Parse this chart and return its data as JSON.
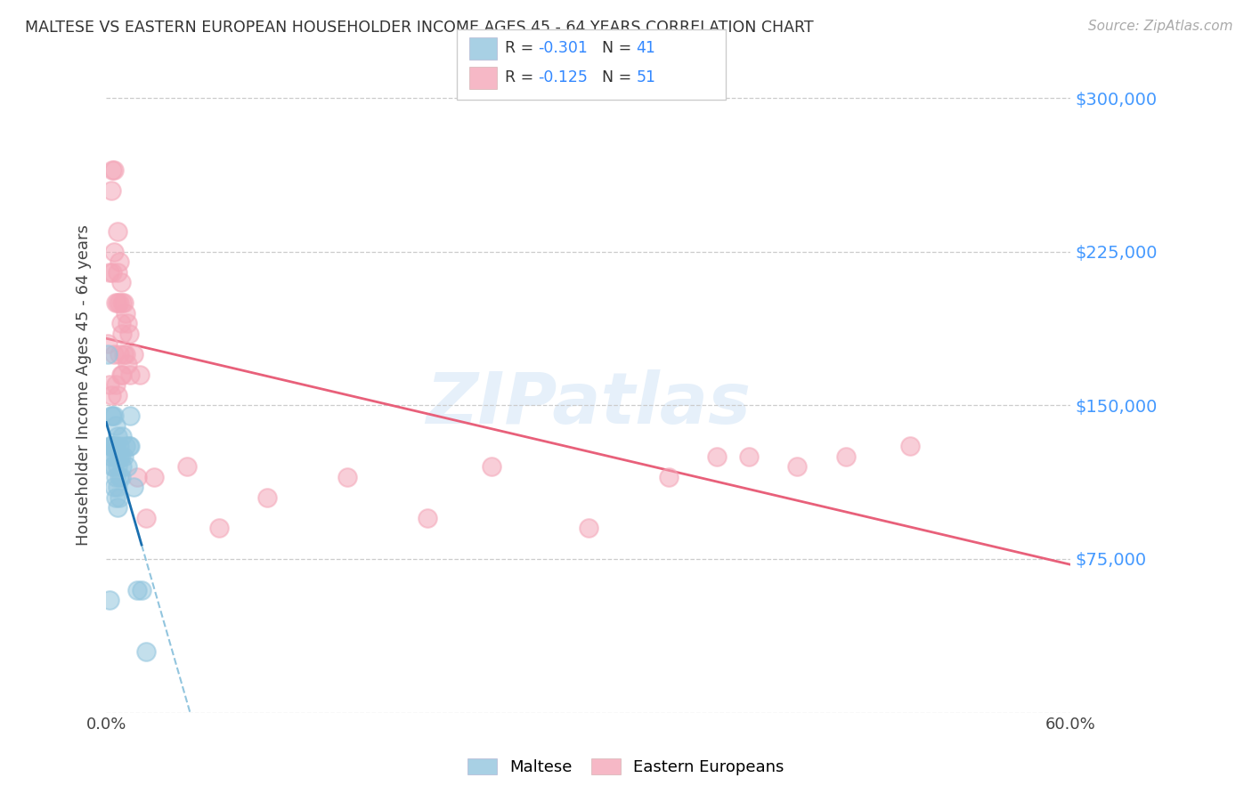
{
  "title": "MALTESE VS EASTERN EUROPEAN HOUSEHOLDER INCOME AGES 45 - 64 YEARS CORRELATION CHART",
  "source": "Source: ZipAtlas.com",
  "ylabel": "Householder Income Ages 45 - 64 years",
  "xlim": [
    0.0,
    0.6
  ],
  "ylim": [
    0,
    320000
  ],
  "xticks": [
    0.0,
    0.1,
    0.2,
    0.3,
    0.4,
    0.5,
    0.6
  ],
  "xticklabels": [
    "0.0%",
    "",
    "",
    "",
    "",
    "",
    "60.0%"
  ],
  "yticks": [
    0,
    75000,
    150000,
    225000,
    300000
  ],
  "yticklabels": [
    "",
    "$75,000",
    "$150,000",
    "$225,000",
    "$300,000"
  ],
  "maltese_color": "#92c5de",
  "eastern_color": "#f4a6b8",
  "maltese_line_color": "#1a6faf",
  "eastern_line_color": "#e8607a",
  "dashed_line_color": "#92c5de",
  "watermark": "ZIPatlas",
  "maltese_x": [
    0.001,
    0.002,
    0.002,
    0.003,
    0.003,
    0.003,
    0.004,
    0.004,
    0.004,
    0.005,
    0.005,
    0.005,
    0.005,
    0.006,
    0.006,
    0.006,
    0.006,
    0.006,
    0.007,
    0.007,
    0.007,
    0.007,
    0.007,
    0.008,
    0.008,
    0.008,
    0.008,
    0.009,
    0.009,
    0.01,
    0.01,
    0.011,
    0.012,
    0.013,
    0.014,
    0.015,
    0.015,
    0.017,
    0.019,
    0.022,
    0.025
  ],
  "maltese_y": [
    175000,
    130000,
    55000,
    125000,
    130000,
    145000,
    120000,
    130000,
    145000,
    110000,
    120000,
    130000,
    145000,
    105000,
    115000,
    125000,
    130000,
    140000,
    100000,
    110000,
    120000,
    125000,
    135000,
    105000,
    115000,
    125000,
    130000,
    115000,
    125000,
    120000,
    135000,
    125000,
    130000,
    120000,
    130000,
    130000,
    145000,
    110000,
    60000,
    60000,
    30000
  ],
  "eastern_x": [
    0.001,
    0.002,
    0.002,
    0.003,
    0.003,
    0.004,
    0.004,
    0.005,
    0.005,
    0.005,
    0.006,
    0.006,
    0.007,
    0.007,
    0.007,
    0.007,
    0.008,
    0.008,
    0.008,
    0.009,
    0.009,
    0.009,
    0.01,
    0.01,
    0.01,
    0.011,
    0.011,
    0.012,
    0.012,
    0.013,
    0.013,
    0.014,
    0.015,
    0.017,
    0.019,
    0.021,
    0.025,
    0.03,
    0.05,
    0.07,
    0.1,
    0.15,
    0.2,
    0.24,
    0.3,
    0.35,
    0.38,
    0.4,
    0.43,
    0.46,
    0.5
  ],
  "eastern_y": [
    180000,
    160000,
    215000,
    155000,
    255000,
    215000,
    265000,
    175000,
    225000,
    265000,
    160000,
    200000,
    155000,
    200000,
    215000,
    235000,
    175000,
    200000,
    220000,
    165000,
    190000,
    210000,
    165000,
    185000,
    200000,
    175000,
    200000,
    175000,
    195000,
    170000,
    190000,
    185000,
    165000,
    175000,
    115000,
    165000,
    95000,
    115000,
    120000,
    90000,
    105000,
    115000,
    95000,
    120000,
    90000,
    115000,
    125000,
    125000,
    120000,
    125000,
    130000
  ]
}
